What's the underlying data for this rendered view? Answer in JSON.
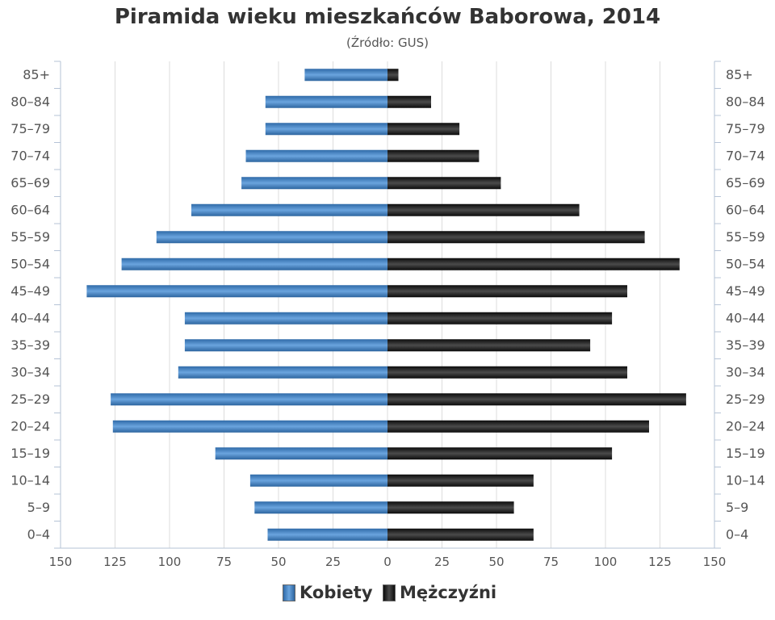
{
  "chart_data": {
    "type": "bar",
    "orientation": "horizontal-population-pyramid",
    "title": "Piramida wieku mieszkańców Baborowa, 2014",
    "subtitle": "(Źródło: GUS)",
    "categories": [
      "0–4",
      "5–9",
      "10–14",
      "15–19",
      "20–24",
      "25–29",
      "30–34",
      "35–39",
      "40–44",
      "45–49",
      "50–54",
      "55–59",
      "60–64",
      "65–69",
      "70–74",
      "75–79",
      "80–84",
      "85+"
    ],
    "series": [
      {
        "name": "Kobiety",
        "color": "#3f7fc1",
        "side": "left",
        "values": [
          55,
          61,
          63,
          79,
          126,
          127,
          96,
          93,
          93,
          138,
          122,
          106,
          90,
          67,
          65,
          56,
          56,
          38
        ]
      },
      {
        "name": "Mężczyźni",
        "color": "#1a1a1a",
        "side": "right",
        "values": [
          67,
          58,
          67,
          103,
          120,
          137,
          110,
          93,
          103,
          110,
          134,
          118,
          88,
          52,
          42,
          33,
          20,
          5
        ]
      }
    ],
    "xlim": [
      -150,
      150
    ],
    "x_ticks": [
      -150,
      -125,
      -100,
      -75,
      -50,
      -25,
      0,
      25,
      50,
      75,
      100,
      125,
      150
    ],
    "x_tick_labels": [
      "150",
      "125",
      "100",
      "75",
      "50",
      "25",
      "0",
      "25",
      "50",
      "75",
      "100",
      "125",
      "150"
    ],
    "grid": true,
    "legend_position": "bottom-center"
  }
}
